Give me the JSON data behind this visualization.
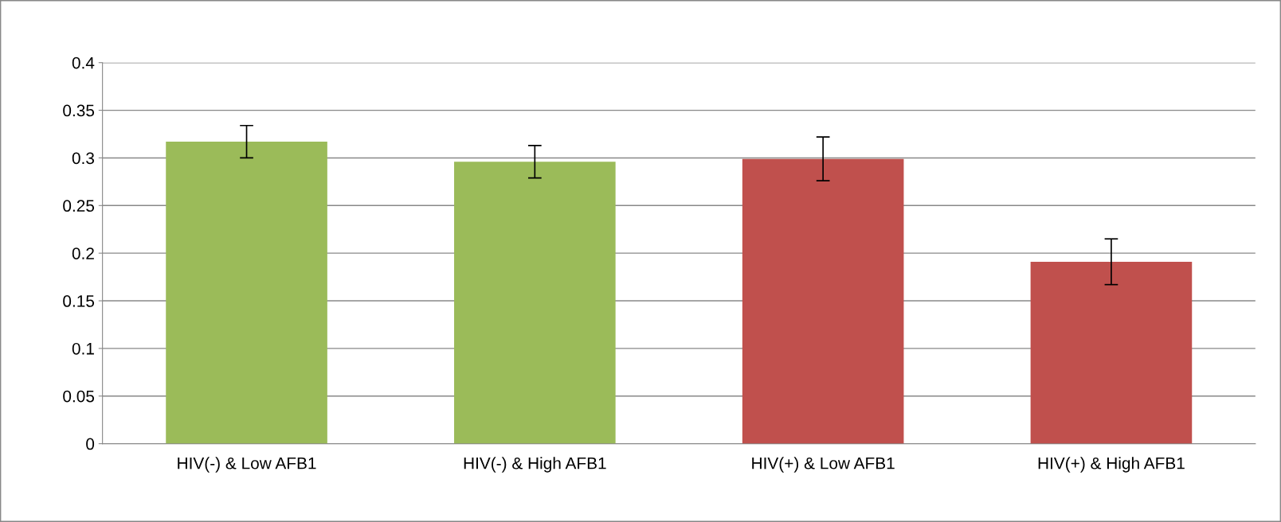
{
  "chart_data": {
    "type": "bar",
    "categories": [
      "HIV(-) & Low AFB1",
      "HIV(-) & High AFB1",
      "HIV(+) & Low AFB1",
      "HIV(+) & High AFB1"
    ],
    "values": [
      0.317,
      0.296,
      0.299,
      0.191
    ],
    "colors": [
      "#9bbb59",
      "#9bbb59",
      "#c0504d",
      "#c0504d"
    ],
    "errors": [
      0.017,
      0.017,
      0.023,
      0.024
    ],
    "ylim": [
      0,
      0.4
    ],
    "yticks": [
      0,
      0.05,
      0.1,
      0.15,
      0.2,
      0.25,
      0.3,
      0.35,
      0.4
    ],
    "grid": "y"
  }
}
